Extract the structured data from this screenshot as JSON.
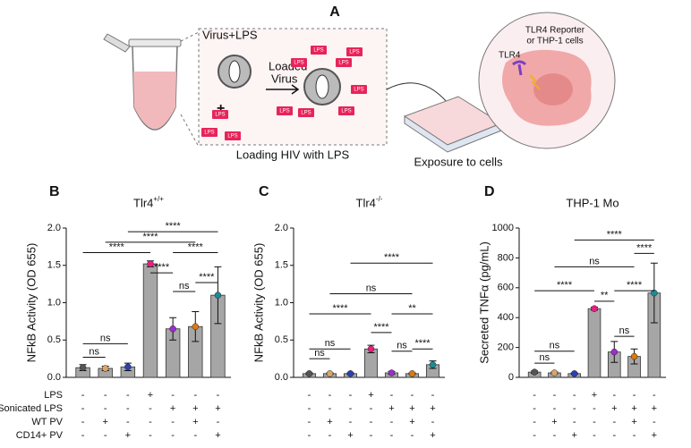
{
  "diagram": {
    "panel_letter": "A",
    "mix_label": "Virus+LPS",
    "plus": "+",
    "arrow_label": [
      "Loaded",
      "Virus"
    ],
    "lps_tags": [
      "LPS",
      "LPS",
      "LPS",
      "LPS",
      "LPS",
      "LPS",
      "LPS",
      "LPS",
      "LPS",
      "LPS",
      "LPS"
    ],
    "box_caption": "Loading HIV with LPS",
    "cell_label": [
      "TLR4 Reporter",
      "or THP-1 cells"
    ],
    "receptor_label": "TLR4",
    "plate_caption": "Exposure to cells"
  },
  "treatment_labels": [
    "LPS",
    "Sonicated LPS",
    "WT PV",
    "CD14+ PV"
  ],
  "chart_data": [
    {
      "type": "bar",
      "panel_letter": "B",
      "title": "Tlr4",
      "title_sup": "+/+",
      "y_label": "NFkB Activity (OD 655)",
      "categories": [
        null,
        null,
        null,
        null,
        null,
        null,
        null
      ],
      "values": [
        0.13,
        0.12,
        0.14,
        1.52,
        0.65,
        0.68,
        1.1
      ],
      "errors": [
        0.04,
        0.03,
        0.05,
        0.04,
        0.15,
        0.2,
        0.38
      ],
      "colors": [
        "#555555",
        "#d9a46a",
        "#2b3fb5",
        "#e8207f",
        "#9b2fc9",
        "#d97a12",
        "#1a8c95"
      ],
      "bar_color": "#a6a6a6",
      "ylim": [
        0,
        2.0
      ],
      "yticks": [
        {
          "value": 0,
          "label": "0.0"
        },
        {
          "value": 0.5,
          "label": "0.5"
        },
        {
          "value": 1.0,
          "label": "1.0"
        },
        {
          "value": 1.5,
          "label": "1.5"
        },
        {
          "value": 2.0,
          "label": "2.0"
        }
      ],
      "annotations": [
        "ns",
        "ns",
        "****",
        "****",
        "****",
        "****",
        "****",
        "ns",
        "****"
      ],
      "treatments": [
        [
          "-",
          "-",
          "-",
          "+",
          "-",
          "-",
          "-"
        ],
        [
          "-",
          "-",
          "-",
          "-",
          "+",
          "+",
          "+"
        ],
        [
          "-",
          "+",
          "-",
          "-",
          "-",
          "+",
          "-"
        ],
        [
          "-",
          "-",
          "+",
          "-",
          "-",
          "-",
          "+"
        ]
      ]
    },
    {
      "type": "bar",
      "panel_letter": "C",
      "title": "Tlr4",
      "title_sup": "-/-",
      "y_label": "NFkB Activity (OD 655)",
      "categories": [
        null,
        null,
        null,
        null,
        null,
        null,
        null
      ],
      "values": [
        0.05,
        0.05,
        0.05,
        0.38,
        0.06,
        0.05,
        0.17
      ],
      "errors": [
        0.01,
        0.01,
        0.01,
        0.05,
        0.02,
        0.01,
        0.05
      ],
      "colors": [
        "#555555",
        "#d9a46a",
        "#2b3fb5",
        "#e8207f",
        "#9b2fc9",
        "#d97a12",
        "#1a8c95"
      ],
      "bar_color": "#a6a6a6",
      "ylim": [
        0,
        2.0
      ],
      "yticks": [
        {
          "value": 0,
          "label": "0.0"
        },
        {
          "value": 0.5,
          "label": "0.5"
        },
        {
          "value": 1.0,
          "label": "1.0"
        },
        {
          "value": 1.5,
          "label": "1.5"
        },
        {
          "value": 2.0,
          "label": "2.0"
        }
      ],
      "annotations": [
        "ns",
        "ns",
        "****",
        "ns",
        "****",
        "****",
        "**",
        "ns",
        "****"
      ],
      "treatments": [
        [
          "-",
          "-",
          "-",
          "+",
          "-",
          "-",
          "-"
        ],
        [
          "-",
          "-",
          "-",
          "-",
          "+",
          "+",
          "+"
        ],
        [
          "-",
          "+",
          "-",
          "-",
          "-",
          "+",
          "-"
        ],
        [
          "-",
          "-",
          "+",
          "-",
          "-",
          "-",
          "+"
        ]
      ]
    },
    {
      "type": "bar",
      "panel_letter": "D",
      "title": "THP-1 Mo",
      "y_label": "Secreted TNFα (pg/mL)",
      "categories": [
        null,
        null,
        null,
        null,
        null,
        null,
        null
      ],
      "values": [
        35,
        30,
        25,
        460,
        170,
        140,
        565
      ],
      "errors": [
        8,
        6,
        5,
        10,
        70,
        50,
        200
      ],
      "colors": [
        "#555555",
        "#d9a46a",
        "#2b3fb5",
        "#e8207f",
        "#9b2fc9",
        "#d97a12",
        "#1a8c95"
      ],
      "bar_color": "#a6a6a6",
      "ylim": [
        0,
        1000
      ],
      "yticks": [
        0,
        200,
        400,
        600,
        800,
        1000
      ],
      "annotations": [
        "ns",
        "ns",
        "****",
        "**",
        "ns",
        "****",
        "****",
        "ns",
        "****"
      ],
      "treatments": [
        [
          "-",
          "-",
          "-",
          "+",
          "-",
          "-",
          "-"
        ],
        [
          "-",
          "-",
          "-",
          "-",
          "+",
          "+",
          "+"
        ],
        [
          "-",
          "+",
          "-",
          "-",
          "-",
          "+",
          "-"
        ],
        [
          "-",
          "-",
          "+",
          "-",
          "-",
          "-",
          "+"
        ]
      ]
    }
  ]
}
